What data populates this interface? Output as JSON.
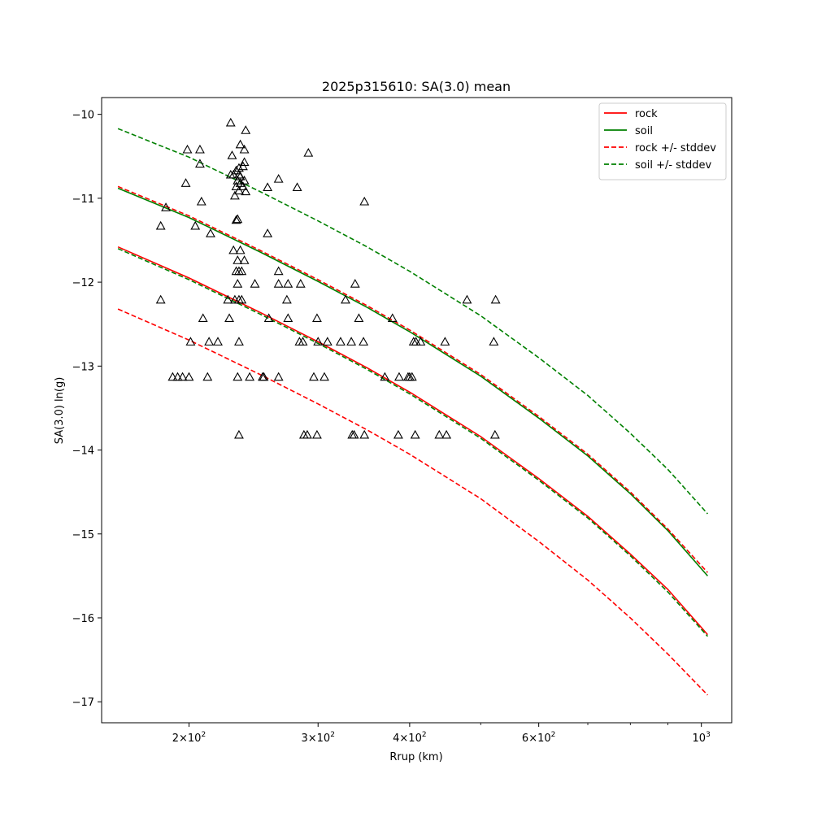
{
  "chart_data": {
    "type": "scatter",
    "title": "2025p315610: SA(3.0) mean",
    "xlabel": "Rrup (km)",
    "ylabel": "SA(3.0) ln(g)",
    "xscale": "log",
    "xlim": [
      152,
      1100
    ],
    "ylim": [
      -17.25,
      -9.8
    ],
    "grid": false,
    "legend_position": "top-right",
    "x_ticks": [
      {
        "value": 200,
        "base": "2",
        "exp": "10",
        "sup": "2"
      },
      {
        "value": 300,
        "base": "3",
        "exp": "10",
        "sup": "2"
      },
      {
        "value": 400,
        "base": "4",
        "exp": "10",
        "sup": "2"
      },
      {
        "value": 600,
        "base": "6",
        "exp": "10",
        "sup": "2"
      },
      {
        "value": 1000,
        "base": "",
        "exp": "10",
        "sup": "3"
      }
    ],
    "x_minor_ticks": [
      500,
      700,
      800,
      900
    ],
    "y_ticks": [
      {
        "value": -10,
        "label": "−10"
      },
      {
        "value": -11,
        "label": "−11"
      },
      {
        "value": -12,
        "label": "−12"
      },
      {
        "value": -13,
        "label": "−13"
      },
      {
        "value": -14,
        "label": "−14"
      },
      {
        "value": -15,
        "label": "−15"
      },
      {
        "value": -16,
        "label": "−16"
      },
      {
        "value": -17,
        "label": "−17"
      }
    ],
    "series": [
      {
        "name": "rock",
        "color": "#ff0000",
        "dash": false,
        "x": [
          160,
          200,
          250,
          300,
          350,
          400,
          500,
          600,
          700,
          800,
          900,
          1020
        ],
        "y": [
          -11.58,
          -11.95,
          -12.36,
          -12.71,
          -13.02,
          -13.31,
          -13.84,
          -14.34,
          -14.79,
          -15.24,
          -15.66,
          -16.2
        ]
      },
      {
        "name": "soil",
        "color": "#008000",
        "dash": false,
        "x": [
          160,
          200,
          250,
          300,
          350,
          400,
          500,
          600,
          700,
          800,
          900,
          1020
        ],
        "y": [
          -10.88,
          -11.23,
          -11.64,
          -11.99,
          -12.3,
          -12.59,
          -13.12,
          -13.62,
          -14.07,
          -14.52,
          -14.96,
          -15.5
        ]
      },
      {
        "name": "rock +/- stddev",
        "color": "#ff0000",
        "dash": true,
        "x": [
          160,
          200,
          250,
          300,
          350,
          400,
          500,
          600,
          700,
          800,
          900,
          1020
        ],
        "y": [
          -10.86,
          -11.21,
          -11.62,
          -11.97,
          -12.28,
          -12.57,
          -13.1,
          -13.6,
          -14.05,
          -14.5,
          -14.94,
          -15.46
        ]
      },
      {
        "name": "",
        "color": "#ff0000",
        "dash": true,
        "x": [
          160,
          200,
          250,
          300,
          350,
          400,
          500,
          600,
          700,
          800,
          900,
          1020
        ],
        "y": [
          -12.32,
          -12.69,
          -13.1,
          -13.45,
          -13.76,
          -14.05,
          -14.58,
          -15.09,
          -15.55,
          -16.0,
          -16.43,
          -16.92
        ]
      },
      {
        "name": "soil +/- stddev",
        "color": "#008000",
        "dash": true,
        "x": [
          160,
          200,
          250,
          300,
          350,
          400,
          500,
          600,
          700,
          800,
          900,
          1020
        ],
        "y": [
          -10.17,
          -10.51,
          -10.92,
          -11.27,
          -11.58,
          -11.87,
          -12.4,
          -12.9,
          -13.35,
          -13.8,
          -14.23,
          -14.76
        ]
      },
      {
        "name": "",
        "color": "#008000",
        "dash": true,
        "x": [
          160,
          200,
          250,
          300,
          350,
          400,
          500,
          600,
          700,
          800,
          900,
          1020
        ],
        "y": [
          -11.6,
          -11.97,
          -12.38,
          -12.73,
          -13.04,
          -13.33,
          -13.86,
          -14.36,
          -14.81,
          -15.26,
          -15.69,
          -16.22
        ]
      }
    ],
    "observations": [
      [
        228,
        -10.1
      ],
      [
        239,
        -10.19
      ],
      [
        235,
        -10.36
      ],
      [
        199,
        -10.42
      ],
      [
        207,
        -10.42
      ],
      [
        238,
        -10.42
      ],
      [
        291,
        -10.46
      ],
      [
        229,
        -10.49
      ],
      [
        238,
        -10.57
      ],
      [
        207,
        -10.59
      ],
      [
        237,
        -10.62
      ],
      [
        234,
        -10.64
      ],
      [
        232,
        -10.67
      ],
      [
        228,
        -10.72
      ],
      [
        230,
        -10.72
      ],
      [
        234,
        -10.72
      ],
      [
        235,
        -10.74
      ],
      [
        265,
        -10.77
      ],
      [
        233,
        -10.79
      ],
      [
        238,
        -10.79
      ],
      [
        198,
        -10.82
      ],
      [
        235,
        -10.82
      ],
      [
        232,
        -10.86
      ],
      [
        237,
        -10.86
      ],
      [
        256,
        -10.87
      ],
      [
        281,
        -10.87
      ],
      [
        234,
        -10.91
      ],
      [
        239,
        -10.92
      ],
      [
        231,
        -10.97
      ],
      [
        208,
        -11.04
      ],
      [
        347,
        -11.04
      ],
      [
        186,
        -11.11
      ],
      [
        233,
        -11.25
      ],
      [
        232,
        -11.26
      ],
      [
        183,
        -11.33
      ],
      [
        204,
        -11.33
      ],
      [
        214,
        -11.42
      ],
      [
        256,
        -11.42
      ],
      [
        230,
        -11.62
      ],
      [
        235,
        -11.62
      ],
      [
        233,
        -11.74
      ],
      [
        238,
        -11.74
      ],
      [
        232,
        -11.87
      ],
      [
        234,
        -11.87
      ],
      [
        236,
        -11.87
      ],
      [
        265,
        -11.87
      ],
      [
        233,
        -12.02
      ],
      [
        246,
        -12.02
      ],
      [
        265,
        -12.02
      ],
      [
        273,
        -12.02
      ],
      [
        284,
        -12.02
      ],
      [
        337,
        -12.02
      ],
      [
        183,
        -12.21
      ],
      [
        226,
        -12.21
      ],
      [
        231,
        -12.21
      ],
      [
        234,
        -12.21
      ],
      [
        236,
        -12.21
      ],
      [
        272,
        -12.21
      ],
      [
        327,
        -12.21
      ],
      [
        479,
        -12.21
      ],
      [
        524,
        -12.21
      ],
      [
        209,
        -12.43
      ],
      [
        227,
        -12.43
      ],
      [
        257,
        -12.43
      ],
      [
        273,
        -12.43
      ],
      [
        299,
        -12.43
      ],
      [
        341,
        -12.43
      ],
      [
        379,
        -12.43
      ],
      [
        201,
        -12.71
      ],
      [
        213,
        -12.71
      ],
      [
        219,
        -12.71
      ],
      [
        234,
        -12.71
      ],
      [
        283,
        -12.71
      ],
      [
        286,
        -12.71
      ],
      [
        300,
        -12.71
      ],
      [
        309,
        -12.71
      ],
      [
        322,
        -12.71
      ],
      [
        333,
        -12.71
      ],
      [
        346,
        -12.71
      ],
      [
        405,
        -12.71
      ],
      [
        408,
        -12.71
      ],
      [
        414,
        -12.71
      ],
      [
        447,
        -12.71
      ],
      [
        521,
        -12.71
      ],
      [
        190,
        -13.13
      ],
      [
        193,
        -13.13
      ],
      [
        196,
        -13.13
      ],
      [
        200,
        -13.13
      ],
      [
        212,
        -13.13
      ],
      [
        233,
        -13.13
      ],
      [
        242,
        -13.13
      ],
      [
        252,
        -13.13
      ],
      [
        253,
        -13.13
      ],
      [
        265,
        -13.13
      ],
      [
        296,
        -13.13
      ],
      [
        306,
        -13.13
      ],
      [
        370,
        -13.13
      ],
      [
        387,
        -13.13
      ],
      [
        398,
        -13.13
      ],
      [
        400,
        -13.13
      ],
      [
        403,
        -13.13
      ],
      [
        234,
        -13.82
      ],
      [
        287,
        -13.82
      ],
      [
        290,
        -13.82
      ],
      [
        299,
        -13.82
      ],
      [
        334,
        -13.82
      ],
      [
        336,
        -13.82
      ],
      [
        347,
        -13.82
      ],
      [
        386,
        -13.82
      ],
      [
        407,
        -13.82
      ],
      [
        439,
        -13.82
      ],
      [
        449,
        -13.82
      ],
      [
        523,
        -13.82
      ]
    ]
  }
}
